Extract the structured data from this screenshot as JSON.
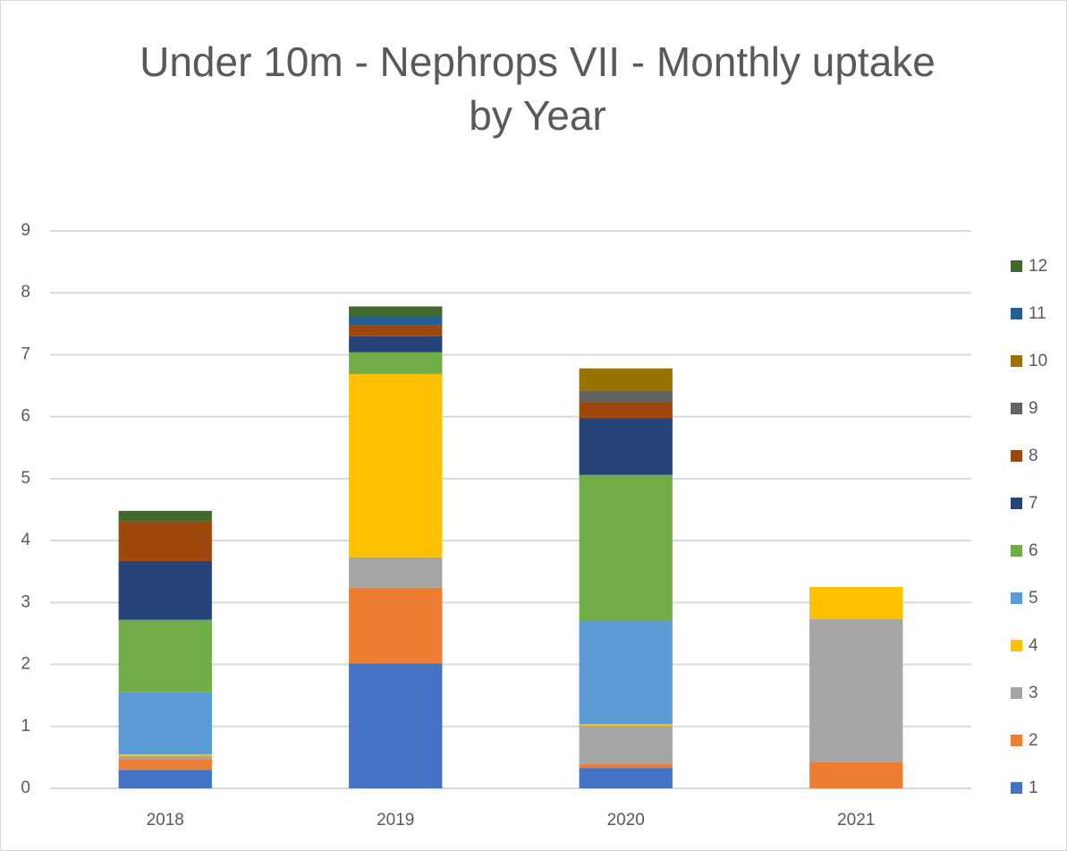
{
  "chart_data": {
    "type": "stacked_bar",
    "title": "Under 10m - Nephrops VII - Monthly uptake by Year",
    "categories": [
      "2018",
      "2019",
      "2020",
      "2021"
    ],
    "series": [
      {
        "name": "1",
        "color": "#4472c4",
        "values": [
          0.3,
          2.02,
          0.33,
          0
        ]
      },
      {
        "name": "2",
        "color": "#ed7d31",
        "values": [
          0.17,
          1.22,
          0.06,
          0.43
        ]
      },
      {
        "name": "3",
        "color": "#a5a5a5",
        "values": [
          0.05,
          0.49,
          0.62,
          2.3
        ]
      },
      {
        "name": "4",
        "color": "#ffc000",
        "values": [
          0.03,
          2.96,
          0.03,
          0.52
        ]
      },
      {
        "name": "5",
        "color": "#5b9bd5",
        "values": [
          1.0,
          0,
          1.66,
          0
        ]
      },
      {
        "name": "6",
        "color": "#70ad47",
        "values": [
          1.17,
          0.35,
          2.36,
          0
        ]
      },
      {
        "name": "7",
        "color": "#264478",
        "values": [
          0.95,
          0.26,
          0.92,
          0
        ]
      },
      {
        "name": "8",
        "color": "#9e480e",
        "values": [
          0.64,
          0.17,
          0.26,
          0
        ]
      },
      {
        "name": "9",
        "color": "#636363",
        "values": [
          0,
          0,
          0.18,
          0
        ]
      },
      {
        "name": "10",
        "color": "#997300",
        "values": [
          0,
          0,
          0.36,
          0
        ]
      },
      {
        "name": "11",
        "color": "#255e91",
        "values": [
          0,
          0.15,
          0,
          0
        ]
      },
      {
        "name": "12",
        "color": "#43682b",
        "values": [
          0.17,
          0.16,
          0,
          0
        ]
      }
    ],
    "ylim": [
      0,
      9
    ],
    "yticks": [
      0,
      1,
      2,
      3,
      4,
      5,
      6,
      7,
      8,
      9
    ],
    "grid": true,
    "legend": "right"
  }
}
